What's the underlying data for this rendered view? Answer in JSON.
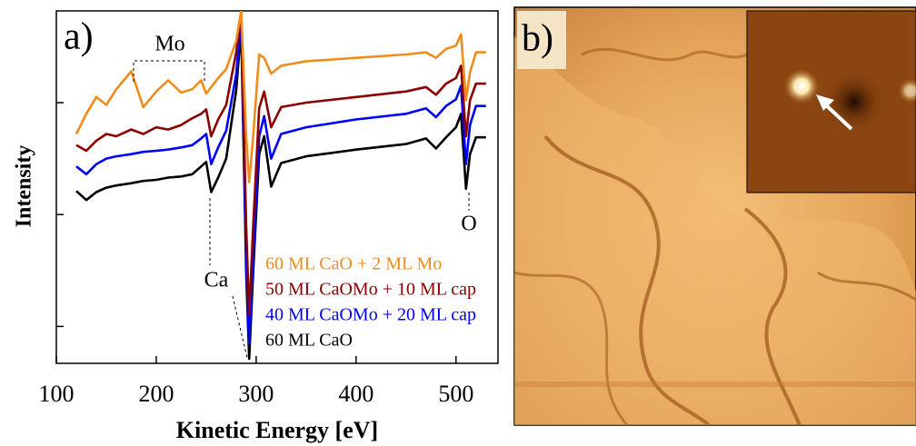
{
  "chart_data": {
    "type": "line",
    "panel_label": "a)",
    "x_label": "Kinetic Energy [eV]",
    "y_label": "Intensity",
    "xlim": [
      100,
      542
    ],
    "xticks": [
      100,
      200,
      300,
      400,
      500
    ],
    "ylim": [
      0.67,
      3.82
    ],
    "yticks": [
      1,
      2,
      3
    ],
    "annotations": [
      "Mo",
      "Ca",
      "O"
    ],
    "x": [
      120,
      130,
      140,
      150,
      160,
      175,
      187,
      200,
      212,
      225,
      236,
      245,
      250,
      255,
      262,
      270,
      280,
      285,
      290,
      293,
      297,
      303,
      308,
      315,
      325,
      350,
      400,
      450,
      470,
      480,
      490,
      500,
      505,
      510,
      514,
      520,
      530
    ],
    "series": [
      {
        "name": "60 ML CaO  +  2 ML Mo",
        "color": "#f08c1c",
        "values": [
          2.72,
          2.9,
          3.05,
          2.98,
          3.12,
          3.28,
          2.96,
          3.1,
          3.2,
          3.09,
          3.12,
          3.2,
          3.08,
          3.14,
          3.22,
          3.3,
          3.55,
          3.82,
          2.7,
          2.29,
          2.7,
          3.43,
          3.4,
          3.26,
          3.33,
          3.37,
          3.4,
          3.43,
          3.45,
          3.4,
          3.48,
          3.51,
          3.61,
          3.02,
          3.27,
          3.45,
          3.45
        ]
      },
      {
        "name": "50 ML CaOMo + 10 ML cap",
        "color": "#8b0000",
        "values": [
          2.62,
          2.57,
          2.66,
          2.72,
          2.7,
          2.76,
          2.72,
          2.78,
          2.76,
          2.8,
          2.86,
          2.9,
          2.94,
          2.7,
          2.85,
          2.98,
          3.45,
          3.8,
          1.9,
          1.1,
          1.9,
          2.95,
          3.1,
          2.78,
          2.96,
          3.0,
          3.05,
          3.1,
          3.14,
          3.07,
          3.17,
          3.22,
          3.33,
          2.7,
          3.02,
          3.17,
          3.17
        ]
      },
      {
        "name": "40 ML CaOMo + 20 ML cap",
        "color": "#0000ff",
        "values": [
          2.43,
          2.36,
          2.45,
          2.5,
          2.52,
          2.54,
          2.56,
          2.57,
          2.58,
          2.6,
          2.62,
          2.68,
          2.72,
          2.45,
          2.6,
          2.75,
          3.25,
          3.75,
          1.6,
          0.85,
          1.6,
          2.7,
          2.88,
          2.5,
          2.72,
          2.78,
          2.85,
          2.9,
          2.95,
          2.87,
          2.97,
          3.03,
          3.15,
          2.45,
          2.8,
          2.97,
          2.97
        ]
      },
      {
        "name": "60 ML CaO",
        "color": "#000000",
        "values": [
          2.21,
          2.13,
          2.2,
          2.24,
          2.26,
          2.28,
          2.3,
          2.31,
          2.33,
          2.34,
          2.36,
          2.43,
          2.47,
          2.2,
          2.33,
          2.5,
          3.11,
          3.67,
          1.48,
          0.71,
          1.48,
          2.54,
          2.7,
          2.25,
          2.46,
          2.52,
          2.58,
          2.63,
          2.68,
          2.59,
          2.69,
          2.78,
          2.9,
          2.23,
          2.54,
          2.69,
          2.69
        ]
      }
    ]
  },
  "panel_b": {
    "label": "b)"
  }
}
